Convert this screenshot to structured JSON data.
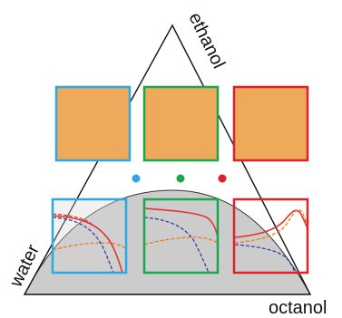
{
  "labels": {
    "top_vertex": "ethanol",
    "left_vertex": "water",
    "right_vertex": "octanol"
  },
  "colors": {
    "blue_frame": "#2ea8e0",
    "green_frame": "#1aa64a",
    "red_frame": "#e0202a",
    "phase_fill": "#cccccc",
    "texture_blue": "#5a5fbe",
    "texture_orange": "#eea95a",
    "curve_red": "#e3342f",
    "curve_orange": "#f07a1a",
    "curve_navy": "#3a40a8"
  },
  "dots": [
    "blue",
    "green",
    "red"
  ],
  "panels": [
    "blue",
    "green",
    "red"
  ]
}
